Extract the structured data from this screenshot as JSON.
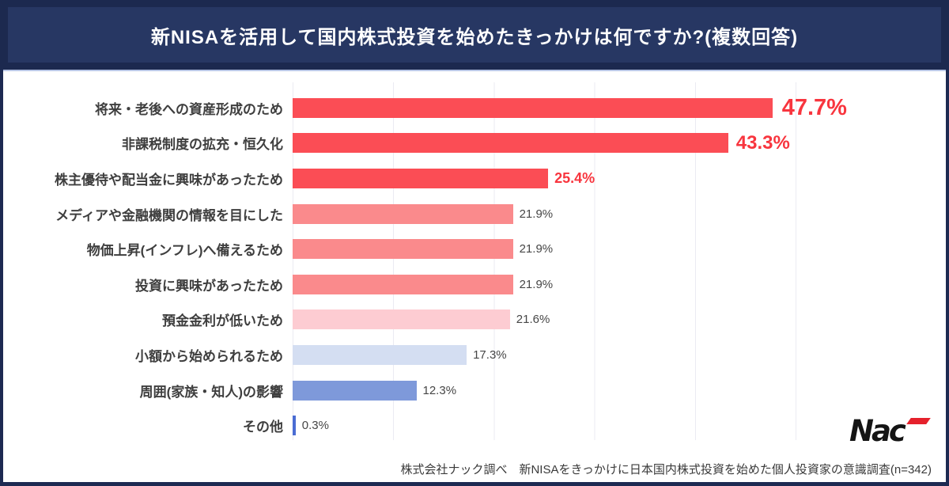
{
  "header": {
    "title": "新NISAを活用して国内株式投資を始めたきっかけは何ですか?(複数回答)"
  },
  "chart_data": {
    "type": "bar",
    "orientation": "horizontal",
    "title": "新NISAを活用して国内株式投資を始めたきっかけは何ですか?(複数回答)",
    "categories": [
      "将来・老後への資産形成のため",
      "非課税制度の拡充・恒久化",
      "株主優待や配当金に興味があったため",
      "メディアや金融機関の情報を目にした",
      "物価上昇(インフレ)へ備えるため",
      "投資に興味があったため",
      "預金金利が低いため",
      "小額から始められるため",
      "周囲(家族・知人)の影響",
      "その他"
    ],
    "values": [
      47.7,
      43.3,
      25.4,
      21.9,
      21.9,
      21.9,
      21.6,
      17.3,
      12.3,
      0.3
    ],
    "value_labels": [
      "47.7%",
      "43.3%",
      "25.4%",
      "21.9%",
      "21.9%",
      "21.9%",
      "21.6%",
      "17.3%",
      "12.3%",
      "0.3%"
    ],
    "bar_colors": [
      "#fb4d55",
      "#fb4d55",
      "#fb4d55",
      "#fa8a8c",
      "#fa8a8c",
      "#fa8a8c",
      "#fdccd2",
      "#d4def2",
      "#7e99da",
      "#4a6cd3"
    ],
    "value_label_styles": [
      "xl",
      "lg",
      "md",
      "sm",
      "sm",
      "sm",
      "sm",
      "sm",
      "sm",
      "sm"
    ],
    "highlighted": [
      true,
      true,
      true,
      false,
      false,
      false,
      false,
      false,
      false,
      false
    ],
    "xlim": [
      0,
      50
    ],
    "gridline_interval": 10,
    "grid": "vertical-only",
    "legend": "none",
    "colors": {
      "accent_red_text": "#f8353e",
      "highlight_yellow": "#fbf83f",
      "banner_navy": "#1d2a52",
      "gridline": "#ebebf2",
      "label_gray": "#3e3e3e"
    }
  },
  "footer": {
    "source_text": "株式会社ナック調べ　新NISAをきっかけに日本国内株式投資を始めた個人投資家の意識調査(n=342)"
  },
  "logo": {
    "text": "Nac"
  }
}
